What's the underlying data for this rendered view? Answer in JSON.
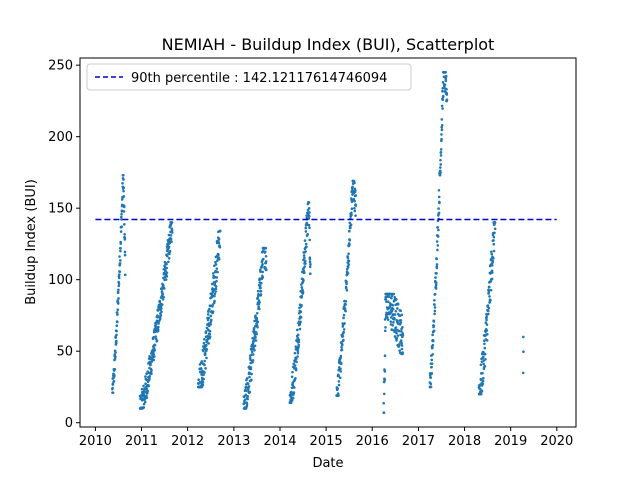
{
  "chart_data": {
    "type": "scatter",
    "title": "NEMIAH - Buildup Index (BUI), Scatterplot",
    "xlabel": "Date",
    "ylabel": "Buildup Index (BUI)",
    "xlim": [
      "2009-09-01",
      "2020-06-01"
    ],
    "ylim": [
      -3,
      255
    ],
    "x_ticks": [
      "2010",
      "2011",
      "2012",
      "2013",
      "2014",
      "2015",
      "2016",
      "2017",
      "2018",
      "2019",
      "2020"
    ],
    "y_ticks": [
      0,
      50,
      100,
      150,
      200,
      250
    ],
    "grid": false,
    "legend": "top-left",
    "colors": {
      "points": "#1f77b4",
      "reference_line": "#0000cc"
    },
    "reference_line": {
      "label": "90th percentile : 142.12117614746094",
      "y": 142.12117614746094,
      "x_range": [
        "2010-01-01",
        "2019-12-31"
      ]
    },
    "series": [
      {
        "seasons": [
          {
            "start": "2010-05-15",
            "end": "2010-08-25",
            "min": 21,
            "max": 173,
            "peak_at": 0.85,
            "end_value": 110,
            "spread": 8
          },
          {
            "start": "2010-12-20",
            "end": "2011-09-01",
            "min": 10,
            "max": 140,
            "peak_at": 1.0,
            "end_value": 140,
            "spread": 10
          },
          {
            "start": "2012-03-25",
            "end": "2012-09-15",
            "min": 25,
            "max": 134,
            "peak_at": 1.0,
            "end_value": 134,
            "spread": 14
          },
          {
            "start": "2013-03-20",
            "end": "2013-09-15",
            "min": 10,
            "max": 122,
            "peak_at": 0.9,
            "end_value": 115,
            "spread": 12
          },
          {
            "start": "2014-03-20",
            "end": "2014-08-30",
            "min": 14,
            "max": 154,
            "peak_at": 0.92,
            "end_value": 110,
            "spread": 12
          },
          {
            "start": "2015-03-25",
            "end": "2015-08-25",
            "min": 19,
            "max": 169,
            "peak_at": 0.85,
            "end_value": 150,
            "spread": 10
          },
          {
            "start": "2016-04-01",
            "end": "2016-08-31",
            "min": 7,
            "max": 90,
            "peak_at": 0.1,
            "end_value": 60,
            "spread": 16
          },
          {
            "start": "2017-04-01",
            "end": "2017-08-15",
            "min": 25,
            "max": 245,
            "peak_at": 0.8,
            "end_value": 230,
            "spread": 10
          },
          {
            "start": "2018-04-25",
            "end": "2018-08-31",
            "min": 20,
            "max": 140,
            "peak_at": 0.98,
            "end_value": 130,
            "spread": 14
          },
          {
            "start": "2019-04-10",
            "end": "2019-04-12",
            "min": 34,
            "max": 60,
            "peak_at": 0.5,
            "end_value": 50,
            "spread": 2
          }
        ]
      }
    ]
  }
}
